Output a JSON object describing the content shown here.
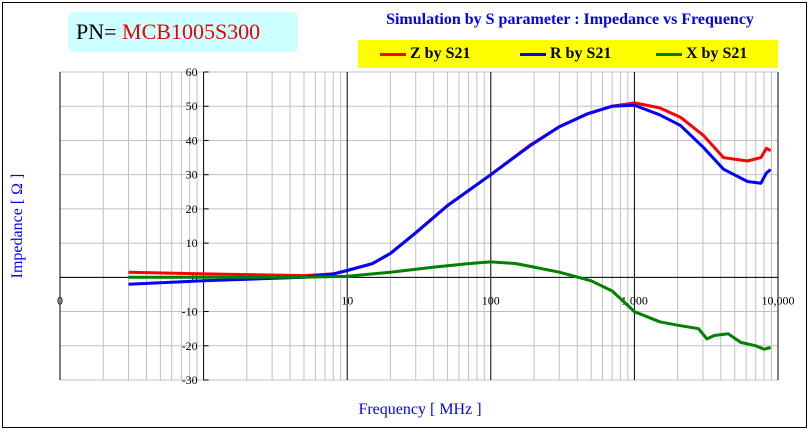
{
  "pn": {
    "label": "PN=",
    "value": "MCB1005S300"
  },
  "chart_data": {
    "type": "line",
    "title": "Simulation by S parameter : Impedance vs Frequency",
    "xlabel": "Frequency [ MHz ]",
    "ylabel": "Impedance [ Ω ]",
    "xscale": "log",
    "xlim": [
      0.1,
      10000
    ],
    "ylim": [
      -30,
      60
    ],
    "grid": true,
    "legend_position": "top-right",
    "xticks": [
      {
        "v": 0.1,
        "label": "0"
      },
      {
        "v": 10,
        "label": "10"
      },
      {
        "v": 100,
        "label": "100"
      },
      {
        "v": 1000,
        "label": "1,000"
      },
      {
        "v": 10000,
        "label": "10,000"
      }
    ],
    "yticks": [
      -30,
      -20,
      -10,
      0,
      10,
      20,
      30,
      40,
      50,
      60
    ],
    "series": [
      {
        "name": "Z by S21",
        "color": "#ff0000",
        "x": [
          0.3,
          1,
          5,
          8,
          10,
          15,
          20,
          30,
          50,
          100,
          190,
          300,
          468,
          700,
          1000,
          1500,
          2090,
          3020,
          4170,
          6130,
          7600,
          8300,
          8900
        ],
        "y": [
          1.5,
          1,
          0.5,
          1,
          2,
          4,
          7,
          13,
          21,
          30,
          38.8,
          44,
          47.8,
          50,
          51,
          49.5,
          46.8,
          41.5,
          35,
          34,
          35,
          37.7,
          37
        ]
      },
      {
        "name": "R by S21",
        "color": "#0000ff",
        "x": [
          0.3,
          1,
          5,
          8,
          10,
          15,
          20,
          30,
          50,
          100,
          190,
          300,
          468,
          700,
          1000,
          1500,
          2090,
          3020,
          4170,
          6130,
          7600,
          8300,
          8900
        ],
        "y": [
          -2,
          -1,
          0,
          1,
          2,
          4,
          7,
          13,
          21,
          30,
          38.6,
          44,
          47.7,
          50,
          50.3,
          47.5,
          44.4,
          38,
          31.6,
          28,
          27.5,
          30.5,
          31.5
        ]
      },
      {
        "name": "X by S21",
        "color": "#008000",
        "x": [
          0.3,
          1,
          5,
          10,
          20,
          40,
          70,
          100,
          150,
          200,
          300,
          500,
          700,
          1000,
          1500,
          2000,
          2800,
          3200,
          3600,
          4500,
          5500,
          7000,
          8000,
          8900
        ],
        "y": [
          0,
          0,
          0,
          0.3,
          1.5,
          3,
          4,
          4.5,
          4,
          3,
          1.5,
          -1,
          -4,
          -10,
          -13,
          -14,
          -15,
          -18,
          -17,
          -16.5,
          -19,
          -20,
          -21,
          -20.5
        ]
      }
    ]
  }
}
